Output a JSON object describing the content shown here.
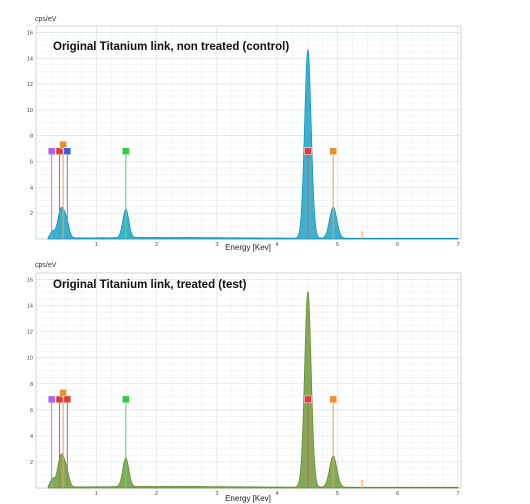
{
  "chart_data": [
    {
      "type": "line",
      "title": "Original Titanium link, non treated (control)",
      "ylabel": "cps/eV",
      "xlabel": "Energy [Kev]",
      "xlim": [
        0,
        7.05
      ],
      "ylim": [
        0,
        16.5
      ],
      "xticks": [
        1,
        2,
        3,
        4,
        5,
        6,
        7
      ],
      "yticks": [
        2,
        4,
        6,
        8,
        10,
        12,
        14,
        16
      ],
      "grid": true,
      "fill_color": "#1aa3c6",
      "line_color": "#0f8fb4",
      "peaks": [
        {
          "energy": 0.27,
          "height": 0.5,
          "width": 0.035
        },
        {
          "energy": 0.39,
          "height": 1.3,
          "width": 0.05
        },
        {
          "energy": 0.45,
          "height": 1.5,
          "width": 0.05
        },
        {
          "energy": 0.52,
          "height": 0.8,
          "width": 0.04
        },
        {
          "energy": 1.49,
          "height": 2.2,
          "width": 0.05
        },
        {
          "energy": 4.51,
          "height": 14.6,
          "width": 0.055
        },
        {
          "energy": 4.93,
          "height": 2.4,
          "width": 0.06
        }
      ],
      "markers": [
        {
          "energy": 0.26,
          "label_color": "#b05ef0",
          "line_color": "#c07ff2",
          "height": 6.8
        },
        {
          "energy": 0.39,
          "label_color": "#e03a3a",
          "line_color": "#e05a5a",
          "height": 6.8
        },
        {
          "energy": 0.45,
          "label_color": "#f08c2a",
          "line_color": "#f0a050",
          "height": 7.3
        },
        {
          "energy": 0.52,
          "label_color": "#3a5ee0",
          "line_color": "#6f86e8",
          "height": 6.8
        },
        {
          "energy": 1.49,
          "label_color": "#2ecc40",
          "line_color": "#58d86a",
          "height": 6.8
        },
        {
          "energy": 4.51,
          "label_color": "#e03a3a",
          "line_color": "#e05a5a",
          "height": 6.8
        },
        {
          "energy": 4.93,
          "label_color": "#f08c2a",
          "line_color": "#f0a050",
          "height": 6.8
        },
        {
          "energy": 5.41,
          "label_color": "",
          "line_color": "#f0a050",
          "height": 0.6
        }
      ]
    },
    {
      "type": "line",
      "title": "Original Titanium link, treated (test)",
      "ylabel": "cps/eV",
      "xlabel": "Energy [Kev]",
      "xlim": [
        0,
        7.05
      ],
      "ylim": [
        0,
        16.5
      ],
      "xticks": [
        1,
        2,
        3,
        4,
        5,
        6,
        7
      ],
      "yticks": [
        2,
        4,
        6,
        8,
        10,
        12,
        14,
        16
      ],
      "grid": true,
      "fill_color": "#6e9a3c",
      "line_color": "#5d8a2e",
      "peaks": [
        {
          "energy": 0.27,
          "height": 0.6,
          "width": 0.035
        },
        {
          "energy": 0.39,
          "height": 1.4,
          "width": 0.05
        },
        {
          "energy": 0.45,
          "height": 1.6,
          "width": 0.05
        },
        {
          "energy": 0.52,
          "height": 0.7,
          "width": 0.04
        },
        {
          "energy": 1.49,
          "height": 2.2,
          "width": 0.05
        },
        {
          "energy": 4.51,
          "height": 15.0,
          "width": 0.055
        },
        {
          "energy": 4.93,
          "height": 2.4,
          "width": 0.06
        }
      ],
      "markers": [
        {
          "energy": 0.26,
          "label_color": "#b05ef0",
          "line_color": "#c07ff2",
          "height": 6.8
        },
        {
          "energy": 0.39,
          "label_color": "#e03a3a",
          "line_color": "#e05a5a",
          "height": 6.8
        },
        {
          "energy": 0.45,
          "label_color": "#f08c2a",
          "line_color": "#f0a050",
          "height": 7.3
        },
        {
          "energy": 0.52,
          "label_color": "#e03a3a",
          "line_color": "#e05a5a",
          "height": 6.8
        },
        {
          "energy": 1.49,
          "label_color": "#2ecc40",
          "line_color": "#58d86a",
          "height": 6.8
        },
        {
          "energy": 4.51,
          "label_color": "#e03a3a",
          "line_color": "#e05a5a",
          "height": 6.8
        },
        {
          "energy": 4.93,
          "label_color": "#f08c2a",
          "line_color": "#f0a050",
          "height": 6.8
        },
        {
          "energy": 5.41,
          "label_color": "",
          "line_color": "#f0a050",
          "height": 0.6
        }
      ]
    }
  ]
}
